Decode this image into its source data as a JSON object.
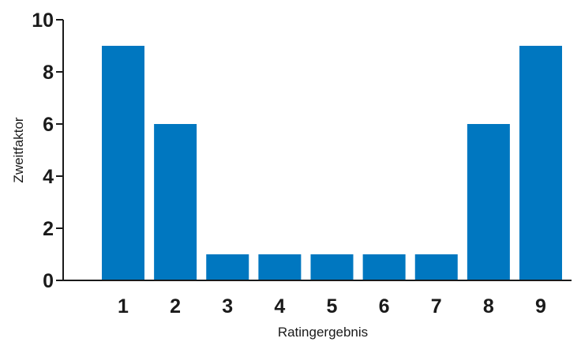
{
  "chart_data": {
    "type": "bar",
    "categories": [
      "1",
      "2",
      "3",
      "4",
      "5",
      "6",
      "7",
      "8",
      "9"
    ],
    "values": [
      9,
      6,
      1,
      1,
      1,
      1,
      1,
      6,
      9
    ],
    "xlabel": "Ratingergebnis",
    "ylabel": "Zweitfaktor",
    "ylim": [
      0,
      10
    ],
    "yticks": [
      0,
      2,
      4,
      6,
      8,
      10
    ],
    "bar_color": "#0077c0",
    "grid": false,
    "legend": "none"
  }
}
